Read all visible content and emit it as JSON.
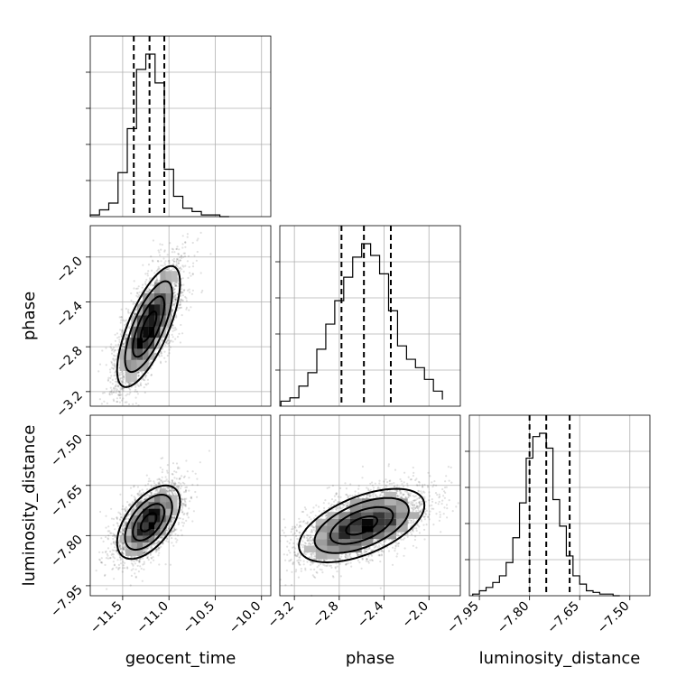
{
  "chart_data": {
    "type": "corner",
    "parameters": [
      "geocent_time",
      "phase",
      "luminosity_distance"
    ],
    "ranges": {
      "geocent_time": [
        -11.85,
        -9.9
      ],
      "phase": [
        -3.33,
        -1.72
      ],
      "luminosity_distance": [
        -7.98,
        -7.44
      ]
    },
    "ticks": {
      "geocent_time": [
        -11.5,
        -11.0,
        -10.5,
        -10.0
      ],
      "phase": [
        -3.2,
        -2.8,
        -2.4,
        -2.0
      ],
      "luminosity_distance": [
        -7.95,
        -7.8,
        -7.65,
        -7.5
      ]
    },
    "tick_labels": {
      "geocent_time": [
        "−11.5",
        "−11.0",
        "−10.5",
        "−10.0"
      ],
      "phase": [
        "−3.2",
        "−2.8",
        "−2.4",
        "−2.0"
      ],
      "luminosity_distance": [
        "−7.95",
        "−7.80",
        "−7.65",
        "−7.50"
      ]
    },
    "quantiles": {
      "geocent_time": [
        -11.38,
        -11.21,
        -11.05
      ],
      "phase": [
        -2.78,
        -2.58,
        -2.34
      ],
      "luminosity_distance": [
        -7.8,
        -7.75,
        -7.68
      ]
    },
    "histograms": {
      "geocent_time": {
        "edges": [
          -11.85,
          -11.75,
          -11.65,
          -11.55,
          -11.45,
          -11.35,
          -11.25,
          -11.15,
          -11.05,
          -10.95,
          -10.85,
          -10.75,
          -10.65,
          -10.55,
          -10.45,
          -10.35
        ],
        "counts": [
          0.01,
          0.04,
          0.08,
          0.26,
          0.52,
          0.87,
          0.96,
          0.79,
          0.28,
          0.12,
          0.05,
          0.03,
          0.01,
          0.01,
          0.0
        ]
      },
      "phase": {
        "edges": [
          -3.32,
          -3.24,
          -3.16,
          -3.08,
          -3.0,
          -2.92,
          -2.84,
          -2.76,
          -2.68,
          -2.6,
          -2.52,
          -2.44,
          -2.36,
          -2.28,
          -2.2,
          -2.12,
          -2.04,
          -1.96,
          -1.88
        ],
        "counts": [
          0.03,
          0.05,
          0.12,
          0.2,
          0.34,
          0.49,
          0.63,
          0.77,
          0.89,
          0.97,
          0.9,
          0.79,
          0.57,
          0.36,
          0.28,
          0.23,
          0.16,
          0.09,
          0.04
        ]
      },
      "luminosity_distance": {
        "edges": [
          -7.97,
          -7.95,
          -7.93,
          -7.91,
          -7.89,
          -7.87,
          -7.85,
          -7.83,
          -7.81,
          -7.79,
          -7.77,
          -7.75,
          -7.73,
          -7.71,
          -7.69,
          -7.67,
          -7.65,
          -7.63,
          -7.61,
          -7.59,
          -7.57,
          -7.55,
          -7.53
        ],
        "counts": [
          0.01,
          0.03,
          0.05,
          0.08,
          0.12,
          0.2,
          0.35,
          0.56,
          0.83,
          0.96,
          0.98,
          0.89,
          0.58,
          0.42,
          0.24,
          0.12,
          0.07,
          0.03,
          0.02,
          0.01,
          0.01,
          0.0
        ]
      }
    },
    "posteriors_2d": [
      {
        "x": "geocent_time",
        "y": "phase",
        "mean": [
          -11.22,
          -2.62
        ],
        "sd": [
          0.17,
          0.27
        ],
        "corr": 0.72,
        "contour_levels_sigma": [
          0.5,
          1.0,
          1.5,
          2.0
        ],
        "n_samples": 3500
      },
      {
        "x": "geocent_time",
        "y": "luminosity_distance",
        "mean": [
          -11.22,
          -7.76
        ],
        "sd": [
          0.17,
          0.055
        ],
        "corr": 0.55,
        "contour_levels_sigma": [
          0.5,
          1.0,
          1.5,
          2.0
        ],
        "n_samples": 3500
      },
      {
        "x": "phase",
        "y": "luminosity_distance",
        "mean": [
          -2.6,
          -7.77
        ],
        "sd": [
          0.28,
          0.055
        ],
        "corr": 0.55,
        "contour_levels_sigma": [
          0.5,
          1.0,
          1.5,
          2.0
        ],
        "n_samples": 3500
      }
    ],
    "grid": true,
    "xlabels": [
      "geocent_time",
      "phase",
      "luminosity_distance"
    ],
    "ylabels": [
      "",
      "phase",
      "luminosity_distance"
    ]
  }
}
